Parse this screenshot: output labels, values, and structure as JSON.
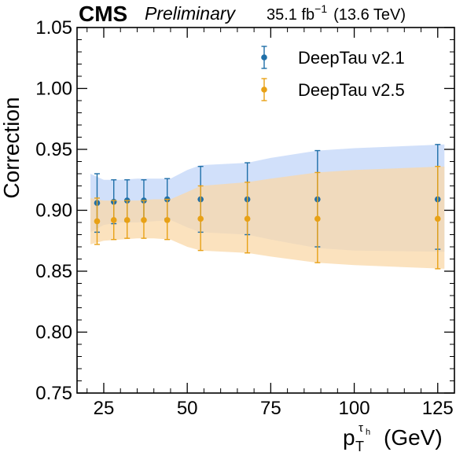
{
  "header": {
    "experiment": "CMS",
    "status": "Preliminary",
    "lumi_value": "35.1 fb",
    "lumi_exp": "−1",
    "energy": "(13.6 TeV)"
  },
  "chart_data": {
    "type": "scatter",
    "title": "",
    "xlabel_main": "p",
    "xlabel_sub": "T",
    "xlabel_sup": "τ",
    "xlabel_supsub": "h",
    "xlabel_unit": "(GeV)",
    "ylabel": "Correction",
    "xlim": [
      17,
      130
    ],
    "ylim": [
      0.75,
      1.05
    ],
    "xticks": [
      25,
      50,
      75,
      100,
      125
    ],
    "xtick_labels": [
      "25",
      "50",
      "75",
      "100",
      "125"
    ],
    "yticks": [
      0.75,
      0.8,
      0.85,
      0.9,
      0.95,
      1.0,
      1.05
    ],
    "ytick_labels": [
      "0.75",
      "0.80",
      "0.85",
      "0.90",
      "0.95",
      "1.00",
      "1.05"
    ],
    "legend_position": "top-right",
    "series": [
      {
        "name": "DeepTau v2.1",
        "color": "#1f6fa8",
        "band_color": "#c2d6f8",
        "x": [
          23,
          28,
          32,
          37,
          44,
          54,
          68,
          89,
          125
        ],
        "y": [
          0.906,
          0.907,
          0.908,
          0.908,
          0.909,
          0.909,
          0.909,
          0.909,
          0.909
        ],
        "err_low": [
          0.024,
          0.018,
          0.017,
          0.016,
          0.016,
          0.027,
          0.029,
          0.039,
          0.041
        ],
        "err_high": [
          0.024,
          0.018,
          0.017,
          0.017,
          0.017,
          0.027,
          0.03,
          0.04,
          0.045
        ],
        "band_x": [
          21,
          25,
          30,
          35,
          40,
          45,
          50,
          54,
          68,
          75,
          89,
          100,
          127
        ],
        "band_low": [
          0.882,
          0.888,
          0.89,
          0.89,
          0.891,
          0.892,
          0.886,
          0.882,
          0.88,
          0.876,
          0.869,
          0.867,
          0.866
        ],
        "band_high": [
          0.93,
          0.925,
          0.925,
          0.926,
          0.926,
          0.926,
          0.933,
          0.937,
          0.939,
          0.943,
          0.949,
          0.951,
          0.954
        ]
      },
      {
        "name": "DeepTau v2.5",
        "color": "#e8a116",
        "band_color": "#f9d8a8",
        "x": [
          23,
          28,
          32,
          37,
          44,
          54,
          68,
          89,
          125
        ],
        "y": [
          0.891,
          0.892,
          0.892,
          0.892,
          0.892,
          0.893,
          0.893,
          0.893,
          0.893
        ],
        "err_low": [
          0.019,
          0.016,
          0.015,
          0.015,
          0.016,
          0.026,
          0.028,
          0.036,
          0.041
        ],
        "err_high": [
          0.019,
          0.016,
          0.016,
          0.016,
          0.017,
          0.027,
          0.03,
          0.038,
          0.043
        ],
        "band_x": [
          21,
          25,
          30,
          35,
          40,
          45,
          50,
          54,
          68,
          75,
          89,
          100,
          127
        ],
        "band_low": [
          0.872,
          0.875,
          0.876,
          0.877,
          0.877,
          0.876,
          0.87,
          0.867,
          0.865,
          0.862,
          0.857,
          0.855,
          0.852
        ],
        "band_high": [
          0.91,
          0.908,
          0.908,
          0.908,
          0.909,
          0.909,
          0.915,
          0.92,
          0.923,
          0.926,
          0.931,
          0.933,
          0.936
        ]
      }
    ]
  }
}
